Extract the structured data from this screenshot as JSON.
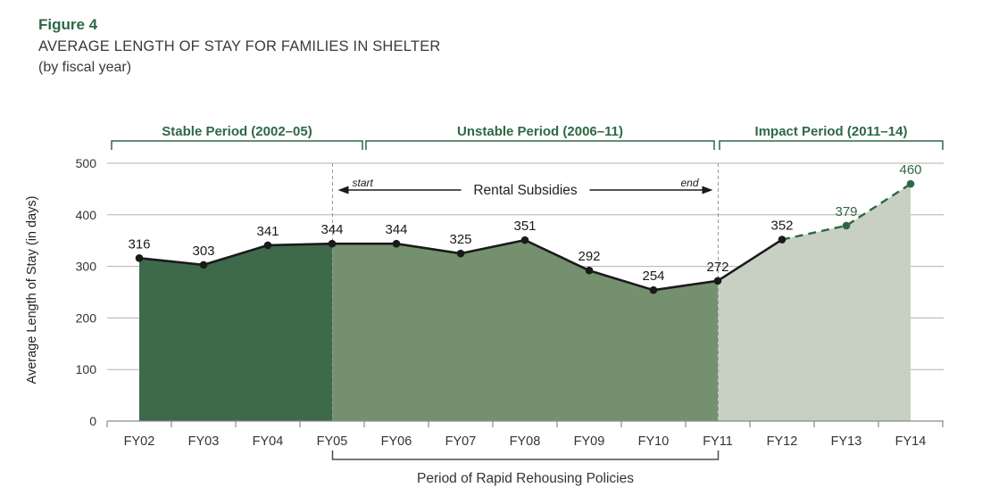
{
  "header": {
    "figure_label": "Figure 4",
    "title": "AVERAGE LENGTH OF STAY FOR FAMILIES IN SHELTER",
    "subtitle": "(by fiscal year)"
  },
  "colors": {
    "green_text": "#2d6845",
    "bracket_green": "#2d6845",
    "stable_fill": "#3e694b",
    "unstable_fill": "#75906f",
    "impact_fill": "#c7d0c3",
    "line": "#1a1a1a",
    "projection_line": "#2d6845",
    "grid": "#b0b0b0",
    "axis": "#8a8a8a",
    "dashed_marker": "#9a9a9a",
    "axis_text": "#333333",
    "annotation_text": "#222222",
    "bottom_bracket": "#4a4a4a"
  },
  "chart_data": {
    "type": "area",
    "categories": [
      "FY02",
      "FY03",
      "FY04",
      "FY05",
      "FY06",
      "FY07",
      "FY08",
      "FY09",
      "FY10",
      "FY11",
      "FY12",
      "FY13",
      "FY14"
    ],
    "values": [
      316,
      303,
      341,
      344,
      344,
      325,
      351,
      292,
      254,
      272,
      352,
      379,
      460
    ],
    "ylabel": "Average Length of Stay (in days)",
    "xlabel": "",
    "ylim": [
      0,
      500
    ],
    "yticks": [
      0,
      100,
      200,
      300,
      400,
      500
    ],
    "grid": true,
    "projected_from": "FY12",
    "markers": [
      "FY05",
      "FY11"
    ],
    "segments": [
      {
        "name": "stable",
        "from": "FY02",
        "to": "FY05"
      },
      {
        "name": "unstable",
        "from": "FY05",
        "to": "FY11"
      },
      {
        "name": "impact",
        "from": "FY11",
        "to": "FY14"
      }
    ],
    "periods": [
      {
        "label": "Stable Period (2002–05)",
        "from": "FY02",
        "to": "FY05"
      },
      {
        "label": "Unstable Period (2006–11)",
        "from": "FY06",
        "to": "FY11"
      },
      {
        "label": "Impact Period (2011–14)",
        "from": "FY11",
        "to": "FY14"
      }
    ],
    "annotations": {
      "rental_subsidies": {
        "label": "Rental Subsidies",
        "start_label": "start",
        "end_label": "end",
        "start": "FY05",
        "end": "FY11"
      },
      "bottom_bracket": {
        "label": "Period of Rapid Rehousing Policies",
        "from": "FY05",
        "to": "FY11"
      }
    }
  }
}
